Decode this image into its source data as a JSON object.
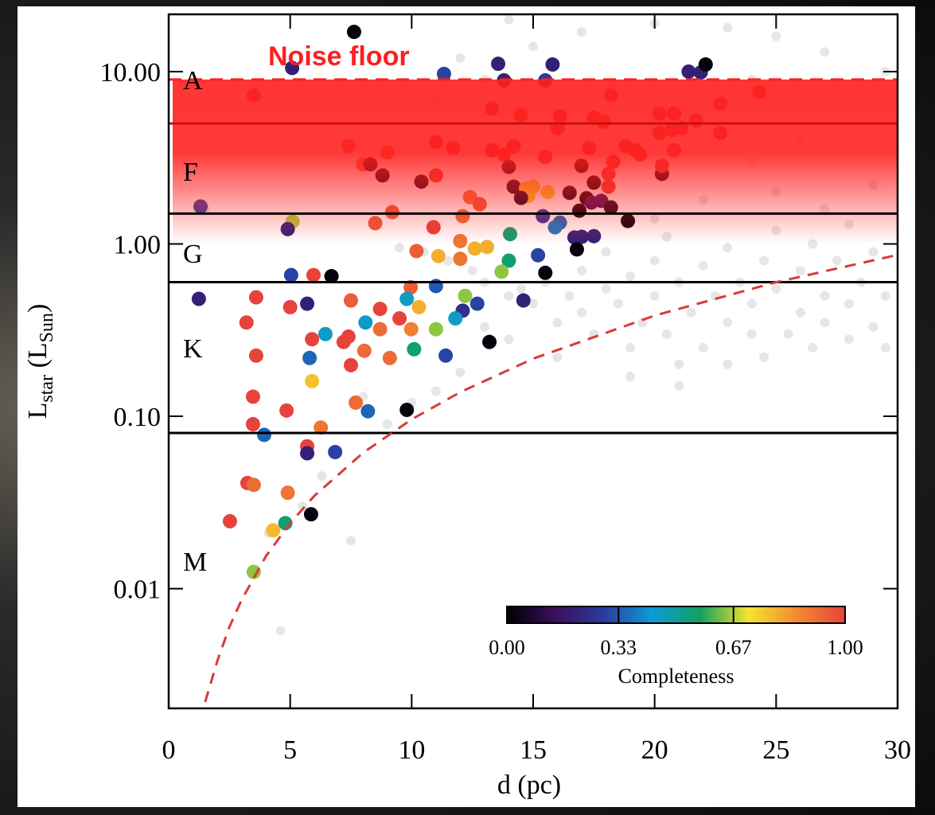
{
  "chart_data": {
    "type": "scatter",
    "xlabel": "d (pc)",
    "ylabel": [
      "L",
      "star",
      " (L",
      "Sun",
      ")"
    ],
    "xlim": [
      0,
      30
    ],
    "ylim": [
      0.00202,
      21.5
    ],
    "yscale": "log",
    "xticks": [
      0,
      5,
      10,
      15,
      20,
      25,
      30
    ],
    "yticks": [
      {
        "value": 10,
        "label": "10.00"
      },
      {
        "value": 1,
        "label": "1.00"
      },
      {
        "value": 0.1,
        "label": "0.10"
      },
      {
        "value": 0.01,
        "label": "0.01"
      }
    ],
    "spectral_classes": [
      "A",
      "F",
      "G",
      "K",
      "M"
    ],
    "class_boundaries": [
      1.5,
      0.6,
      0.08
    ],
    "noise_floor": {
      "label": "Noise floor",
      "center": 5.0,
      "upper": 9.0,
      "lower": 1.0,
      "color": "#ff1e1e"
    },
    "limit_curve": {
      "color": "#d93a3a",
      "x": [
        1.5,
        2,
        2.5,
        3,
        4,
        5,
        6,
        8,
        10,
        12,
        15,
        20,
        25,
        30
      ],
      "values": [
        0.0022,
        0.0038,
        0.006,
        0.0086,
        0.0154,
        0.024,
        0.0346,
        0.0614,
        0.096,
        0.138,
        0.216,
        0.384,
        0.6,
        0.864
      ]
    },
    "background": {
      "color": "#e6e6e6",
      "x": [
        1.5,
        9.5,
        10.5,
        11.5,
        12.5,
        13,
        14,
        14.5,
        15,
        15.5,
        16,
        16.5,
        17,
        17,
        17.5,
        18,
        18,
        18.5,
        19,
        19,
        19.5,
        20,
        20,
        20.5,
        20.5,
        21,
        21,
        21.5,
        22,
        22,
        22.5,
        23,
        23,
        23,
        23.5,
        24,
        24,
        24.5,
        24.5,
        25,
        25,
        25.5,
        26,
        26,
        26.5,
        26.5,
        27,
        27,
        27.5,
        28,
        28,
        28,
        28.5,
        29,
        29,
        29.5,
        29.5,
        27,
        25,
        22,
        20,
        29,
        24,
        26,
        28,
        29.5,
        27,
        25,
        23,
        20,
        17,
        15,
        14,
        13,
        12,
        11,
        24,
        19,
        21,
        16,
        14,
        13,
        12,
        11,
        10,
        9,
        8,
        7.5,
        4.6,
        4.1,
        6.3,
        5.5
      ],
      "values": [
        1.6,
        0.95,
        0.9,
        0.8,
        0.7,
        0.6,
        0.5,
        0.55,
        0.45,
        0.6,
        0.35,
        0.5,
        0.4,
        0.7,
        0.3,
        0.55,
        0.9,
        0.45,
        0.25,
        0.65,
        0.35,
        0.5,
        0.8,
        0.3,
        1.1,
        0.2,
        0.6,
        0.4,
        0.25,
        0.75,
        0.5,
        0.2,
        0.35,
        0.95,
        0.6,
        0.3,
        0.45,
        0.22,
        0.8,
        0.55,
        1.2,
        0.3,
        0.4,
        0.7,
        0.25,
        1.0,
        0.5,
        0.35,
        0.8,
        0.28,
        0.45,
        1.3,
        0.6,
        0.33,
        0.9,
        0.5,
        0.25,
        1.6,
        2.0,
        1.8,
        1.4,
        2.2,
        3.0,
        4.0,
        6.0,
        10,
        13,
        16,
        18,
        19,
        17,
        14,
        20,
        9,
        12,
        7,
        9,
        0.17,
        0.15,
        0.22,
        0.28,
        0.33,
        0.18,
        0.14,
        0.12,
        0.09,
        0.13,
        0.019,
        0.0057,
        0.021,
        0.045,
        0.03
      ]
    },
    "colorbar": {
      "label": "Completeness",
      "lim": [
        0,
        1
      ],
      "ticks": [
        {
          "value": 0,
          "label": "0.00"
        },
        {
          "value": 0.33,
          "label": "0.33"
        },
        {
          "value": 0.67,
          "label": "0.67"
        },
        {
          "value": 1,
          "label": "1.00"
        }
      ],
      "colormap": [
        "#000000",
        "#3b0f5e",
        "#2b3a9c",
        "#0d9ad8",
        "#12a060",
        "#f3e52a",
        "#f38a30",
        "#e6433c"
      ]
    },
    "x": [
      7.63,
      5.08,
      3.5,
      11.33,
      13.56,
      15.8,
      13.8,
      15.5,
      21.4,
      21.9,
      22.1,
      24.3,
      18.2,
      22.7,
      13.3,
      14.5,
      16.1,
      17.5,
      17.9,
      20.2,
      20.8,
      16.0,
      20.2,
      20.7,
      21.1,
      21.7,
      22.7,
      7.4,
      9.0,
      11.0,
      11.7,
      13.3,
      13.8,
      14.2,
      17.3,
      18.3,
      18.8,
      19.2,
      19.4,
      20.8,
      15.5,
      8.0,
      8.3,
      8.8,
      10.4,
      11.0,
      14.0,
      16.99,
      18.1,
      20.3,
      20.3,
      17.5,
      18.1,
      14.2,
      14.7,
      15.0,
      14.8,
      15.6,
      16.5,
      12.4,
      12.8,
      14.5,
      17.2,
      17.4,
      17.8,
      16.9,
      18.2,
      18.9,
      9.2,
      1.31,
      12.1,
      15.4,
      16.1,
      15.9,
      5.1,
      4.9,
      8.5,
      10.9,
      14.05,
      16.7,
      17.0,
      17.5,
      16.8,
      13.1,
      12.6,
      12.0,
      12.0,
      11.1,
      10.2,
      14.0,
      15.2,
      13.7,
      15.5,
      5.04,
      5.96,
      6.7,
      1.24,
      3.6,
      5.0,
      5.7,
      7.5,
      9.96,
      11.0,
      9.8,
      10.3,
      12.2,
      12.7,
      12.1,
      14.6,
      8.7,
      3.2,
      8.1,
      9.5,
      8.7,
      9.98,
      11.0,
      11.8,
      6.45,
      7.4,
      5.9,
      7.2,
      8.05,
      10.1,
      11.4,
      13.2,
      3.6,
      5.8,
      9.1,
      7.5,
      5.9,
      3.47,
      4.85,
      7.7,
      8.2,
      9.8,
      3.47,
      6.26,
      3.93,
      5.7,
      5.7,
      6.85,
      3.24,
      3.5,
      4.9,
      5.86,
      2.52,
      4.8,
      4.3,
      3.5
    ],
    "values": [
      17.0,
      10.5,
      7.3,
      9.7,
      11.1,
      11.0,
      8.9,
      8.9,
      10.0,
      9.9,
      11.0,
      7.6,
      7.3,
      6.5,
      6.1,
      5.6,
      5.5,
      5.4,
      5.1,
      5.7,
      5.7,
      4.7,
      4.4,
      4.6,
      4.7,
      5.2,
      4.4,
      3.7,
      3.4,
      3.9,
      3.6,
      3.5,
      3.3,
      3.7,
      3.6,
      3.0,
      3.7,
      3.5,
      3.3,
      3.5,
      3.2,
      2.9,
      2.9,
      2.5,
      2.3,
      2.5,
      2.8,
      2.84,
      2.55,
      2.55,
      2.85,
      2.27,
      2.15,
      2.15,
      2.1,
      2.15,
      1.9,
      2.0,
      1.98,
      1.87,
      1.7,
      1.85,
      1.84,
      1.74,
      1.78,
      1.56,
      1.63,
      1.36,
      1.53,
      1.65,
      1.45,
      1.45,
      1.33,
      1.25,
      1.35,
      1.22,
      1.32,
      1.25,
      1.14,
      1.09,
      1.1,
      1.11,
      0.93,
      0.96,
      0.94,
      1.04,
      0.82,
      0.85,
      0.91,
      0.8,
      0.86,
      0.69,
      0.68,
      0.66,
      0.66,
      0.65,
      0.48,
      0.49,
      0.43,
      0.45,
      0.47,
      0.56,
      0.57,
      0.48,
      0.43,
      0.5,
      0.45,
      0.41,
      0.47,
      0.42,
      0.35,
      0.35,
      0.37,
      0.32,
      0.32,
      0.32,
      0.37,
      0.3,
      0.29,
      0.28,
      0.27,
      0.24,
      0.245,
      0.225,
      0.27,
      0.225,
      0.218,
      0.218,
      0.198,
      0.16,
      0.13,
      0.108,
      0.12,
      0.107,
      0.109,
      0.09,
      0.086,
      0.078,
      0.067,
      0.061,
      0.062,
      0.041,
      0.04,
      0.036,
      0.027,
      0.0246,
      0.024,
      0.0218,
      0.0125
    ],
    "completeness": [
      0.02,
      0.2,
      1.0,
      0.3,
      0.2,
      0.2,
      0.2,
      0.28,
      0.2,
      0.2,
      0.02,
      1.0,
      1.0,
      1.0,
      1.0,
      0.98,
      1.0,
      1.0,
      1.0,
      1.0,
      1.0,
      1.0,
      1.0,
      1.0,
      1.0,
      1.0,
      1.0,
      0.95,
      0.95,
      1.0,
      1.0,
      1.0,
      1.0,
      1.0,
      1.0,
      1.0,
      1.0,
      1.0,
      1.0,
      1.0,
      1.0,
      0.9,
      0.05,
      0.02,
      0.05,
      1.0,
      0.05,
      0.02,
      1.0,
      0.02,
      1.0,
      0.02,
      1.0,
      0.05,
      0.75,
      0.75,
      0.75,
      0.75,
      0.05,
      0.9,
      0.95,
      0.05,
      0.02,
      0.15,
      0.15,
      0.02,
      0.05,
      0.02,
      0.95,
      0.3,
      0.92,
      0.28,
      0.35,
      0.38,
      0.67,
      0.2,
      0.95,
      1.0,
      0.55,
      0.2,
      0.2,
      0.2,
      0.02,
      0.8,
      0.8,
      0.9,
      0.9,
      0.8,
      0.95,
      0.55,
      0.3,
      0.65,
      0.02,
      0.3,
      1.0,
      0.02,
      0.2,
      1.0,
      1.0,
      0.2,
      0.95,
      0.95,
      0.33,
      0.45,
      0.8,
      0.65,
      0.3,
      0.25,
      0.2,
      1.0,
      1.0,
      0.45,
      1.0,
      0.92,
      0.88,
      0.65,
      0.45,
      0.45,
      1.0,
      1.0,
      1.0,
      0.92,
      0.55,
      0.3,
      0.02,
      1.0,
      0.35,
      0.92,
      1.0,
      0.77,
      1.0,
      1.0,
      0.92,
      0.35,
      0.02,
      1.0,
      0.9,
      0.35,
      1.0,
      0.2,
      0.3,
      1.0,
      0.92,
      0.9,
      0.02,
      1.0,
      0.55,
      0.78,
      0.65
    ]
  }
}
